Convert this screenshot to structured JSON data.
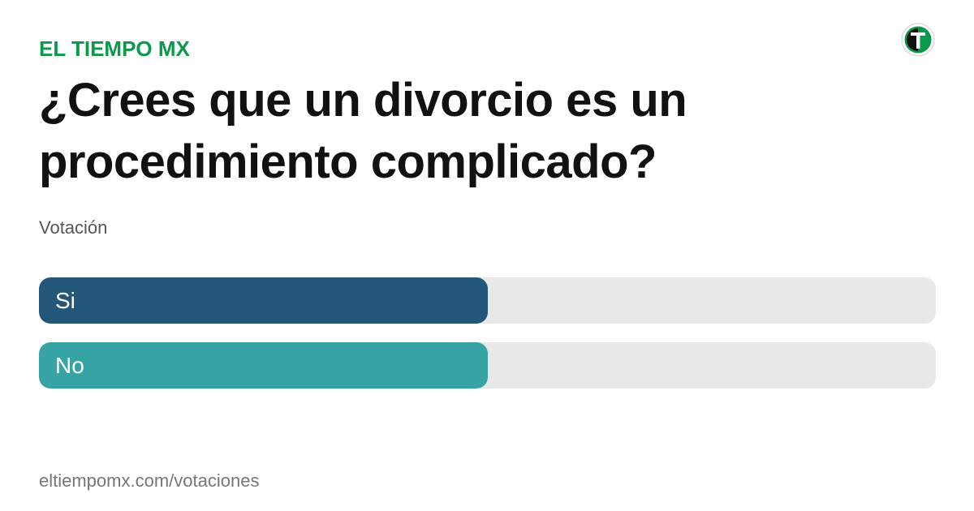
{
  "brand": {
    "name": "EL TIEMPO MX",
    "color": "#0a9a4a",
    "logo_icon": "el-tiempo-t-logo-icon"
  },
  "poll": {
    "question": "¿Crees que un divorcio es un procedimiento complicado?",
    "subtitle": "Votación",
    "options": [
      {
        "label": "Si",
        "fraction": 0.5,
        "color": "#22577a"
      },
      {
        "label": "No",
        "fraction": 0.5,
        "color": "#38a3a5"
      }
    ],
    "track_color": "#e8e8e8"
  },
  "footer": {
    "url": "eltiempomx.com/votaciones"
  }
}
